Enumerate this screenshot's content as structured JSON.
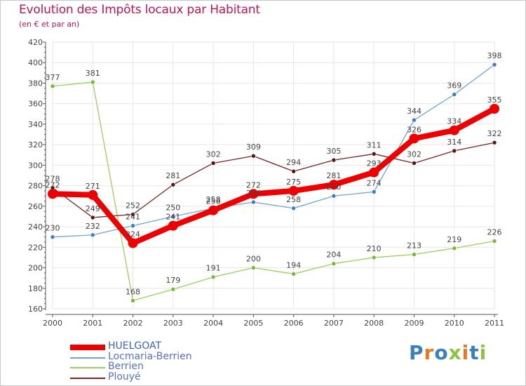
{
  "title": "Evolution des Impôts locaux par Habitant",
  "subtitle": "(en € et par an)",
  "brand": "Proxiti",
  "colors": {
    "title": "#c0154f",
    "grid": "#e6e6e6",
    "axis": "#555555",
    "brand_letters": [
      "#3a7fc2",
      "#e8791f",
      "#3a7fc2",
      "#8cc63f",
      "#e8791f",
      "#3a7fc2",
      "#8cc63f"
    ]
  },
  "chart_data": {
    "type": "line",
    "title": "Evolution des Impôts locaux par Habitant",
    "subtitle": "(en € et par an)",
    "x": [
      "2000",
      "2001",
      "2002",
      "2003",
      "2004",
      "2005",
      "2006",
      "2007",
      "2008",
      "2009",
      "2010",
      "2011"
    ],
    "yticks": [
      "160",
      "180",
      "200",
      "220",
      "240",
      "260",
      "280",
      "300",
      "320",
      "340",
      "360",
      "380",
      "400",
      "420"
    ],
    "ylim": [
      160,
      420
    ],
    "grid": true,
    "legend_position": "bottom-left",
    "series": [
      {
        "name": "HUELGOAT",
        "color": "#ee0000",
        "width": 8,
        "values": [
          272,
          271,
          224,
          241,
          256,
          272,
          275,
          281,
          293,
          326,
          334,
          355
        ],
        "labels": [
          "272",
          "271",
          "224",
          "241",
          "256",
          "272",
          "275",
          "281",
          "293",
          "326",
          "334",
          "355"
        ]
      },
      {
        "name": "Locmaria-Berrien",
        "color": "#6fa3d2",
        "width": 1.3,
        "values": [
          230,
          232,
          241,
          250,
          258,
          264,
          258,
          270,
          274,
          344,
          369,
          398
        ],
        "labels": [
          "230",
          "232",
          "241",
          "250",
          "258",
          "264",
          "258",
          "270",
          "274",
          "344",
          "369",
          "398"
        ]
      },
      {
        "name": "Berrien",
        "color": "#9ad05c",
        "width": 1.3,
        "values": [
          377,
          381,
          168,
          179,
          191,
          200,
          194,
          204,
          210,
          213,
          219,
          226
        ],
        "labels": [
          "377",
          "381",
          "168",
          "179",
          "191",
          "200",
          "194",
          "204",
          "210",
          "213",
          "219",
          "226"
        ]
      },
      {
        "name": "Plouyé",
        "color": "#7a2424",
        "width": 1.3,
        "values": [
          278,
          249,
          252,
          281,
          302,
          309,
          294,
          305,
          311,
          302,
          314,
          322
        ],
        "labels": [
          "278",
          "249",
          "252",
          "281",
          "302",
          "309",
          "294",
          "305",
          "311",
          "302",
          "314",
          "322"
        ]
      }
    ]
  }
}
